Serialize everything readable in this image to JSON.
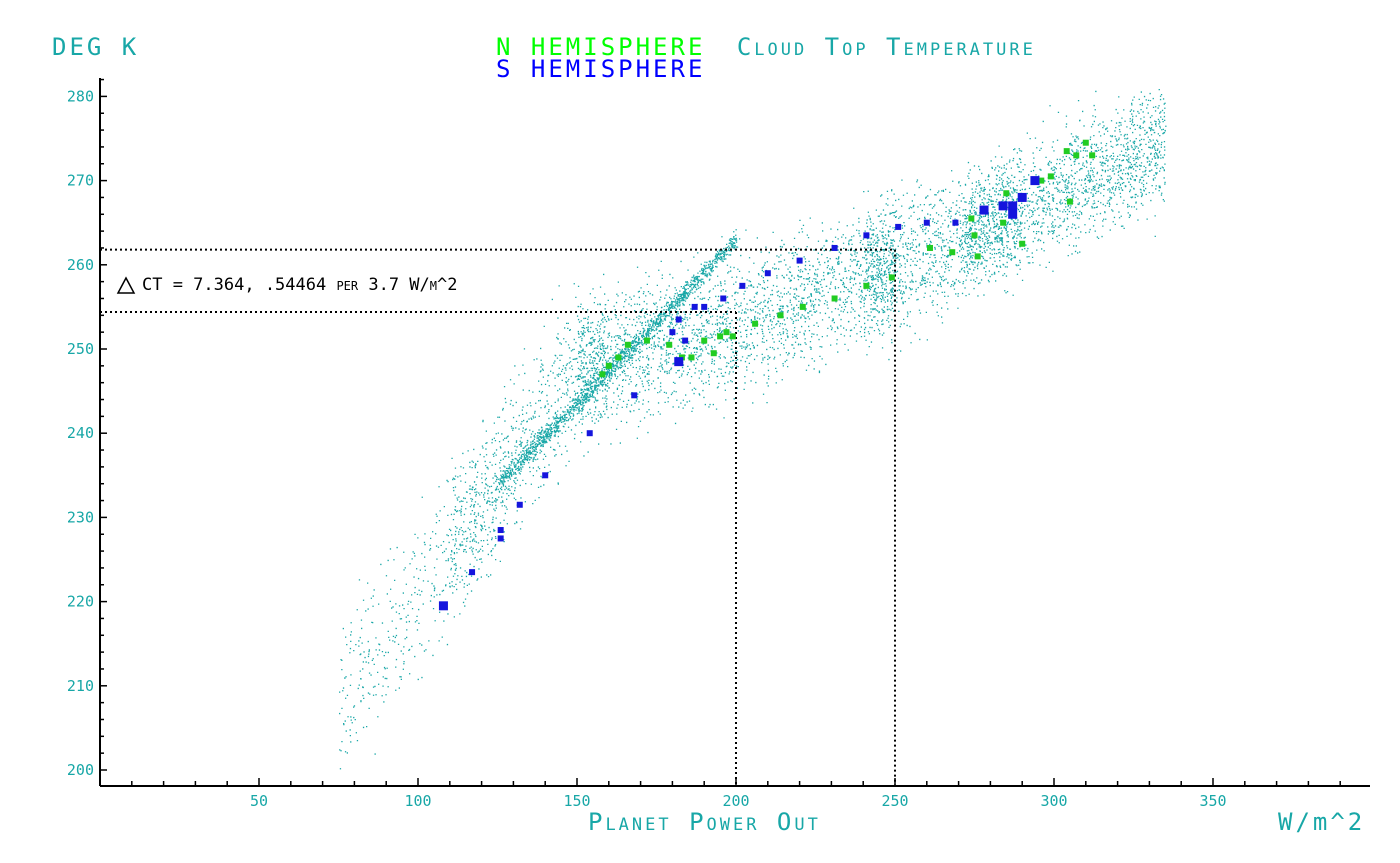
{
  "chart_data": {
    "type": "scatter",
    "title_parts": [
      {
        "text": "N HEMISPHERE",
        "color": "#00ff00"
      },
      {
        "text": "Cloud Top Temperature",
        "color": "#18a7a7"
      }
    ],
    "title_line2": {
      "text": "S HEMISPHERE",
      "color": "#0000ff"
    },
    "ylabel": "DEG K",
    "xlabel": "Planet Power Out",
    "xunit": "W/m^2",
    "annotation": "CT = 7.364, .54464 per 3.7 W/m^2",
    "xlim": [
      0,
      400
    ],
    "ylim": [
      198,
      282
    ],
    "x_ticks": [
      50,
      100,
      150,
      200,
      250,
      300,
      350
    ],
    "y_ticks": [
      200,
      210,
      220,
      230,
      240,
      250,
      260,
      270,
      280
    ],
    "colors": {
      "cloud": "#18a7a7",
      "north": "#22cc22",
      "south": "#1515dd",
      "axis": "#000000"
    },
    "reference_lines": {
      "x": [
        200,
        250
      ],
      "y": [
        254.4,
        261.8
      ]
    },
    "series": [
      {
        "name": "N HEMISPHERE",
        "color": "#22cc22",
        "points": [
          [
            158,
            247.0
          ],
          [
            160,
            248.0
          ],
          [
            163,
            249.0
          ],
          [
            166,
            250.5
          ],
          [
            172,
            251.0
          ],
          [
            179,
            250.5
          ],
          [
            183,
            249.0
          ],
          [
            186,
            249.0
          ],
          [
            190,
            251.0
          ],
          [
            193,
            249.5
          ],
          [
            195,
            251.5
          ],
          [
            197,
            252.0
          ],
          [
            199,
            251.5
          ],
          [
            206,
            253.0
          ],
          [
            214,
            254.0
          ],
          [
            221,
            255.0
          ],
          [
            231,
            256.0
          ],
          [
            241,
            257.5
          ],
          [
            249,
            258.5
          ],
          [
            261,
            262.0
          ],
          [
            268,
            261.5
          ],
          [
            274,
            265.5
          ],
          [
            275,
            263.5
          ],
          [
            276,
            261.0
          ],
          [
            284,
            265.0
          ],
          [
            285,
            268.5
          ],
          [
            287,
            266.0
          ],
          [
            290,
            262.5
          ],
          [
            296,
            270.0
          ],
          [
            299,
            270.5
          ],
          [
            305,
            267.5
          ],
          [
            307,
            273.0
          ],
          [
            310,
            274.5
          ],
          [
            312,
            273.0
          ],
          [
            304,
            273.5
          ]
        ]
      },
      {
        "name": "S HEMISPHERE",
        "color": "#1515dd",
        "points": [
          [
            108,
            219.5
          ],
          [
            117,
            223.5
          ],
          [
            126,
            227.5
          ],
          [
            126,
            228.5
          ],
          [
            132,
            231.5
          ],
          [
            140,
            235.0
          ],
          [
            154,
            240.0
          ],
          [
            168,
            244.5
          ],
          [
            182,
            248.5
          ],
          [
            180,
            252.0
          ],
          [
            182,
            253.5
          ],
          [
            184,
            251.0
          ],
          [
            187,
            255.0
          ],
          [
            190,
            255.0
          ],
          [
            196,
            256.0
          ],
          [
            202,
            257.5
          ],
          [
            210,
            259.0
          ],
          [
            220,
            260.5
          ],
          [
            231,
            262.0
          ],
          [
            241,
            263.5
          ],
          [
            251,
            264.5
          ],
          [
            260,
            265.0
          ],
          [
            269,
            265.0
          ],
          [
            278,
            266.5
          ],
          [
            284,
            267.0
          ],
          [
            287,
            267.0
          ],
          [
            287,
            266.0
          ],
          [
            290,
            268.0
          ],
          [
            294,
            270.0
          ]
        ]
      }
    ]
  }
}
